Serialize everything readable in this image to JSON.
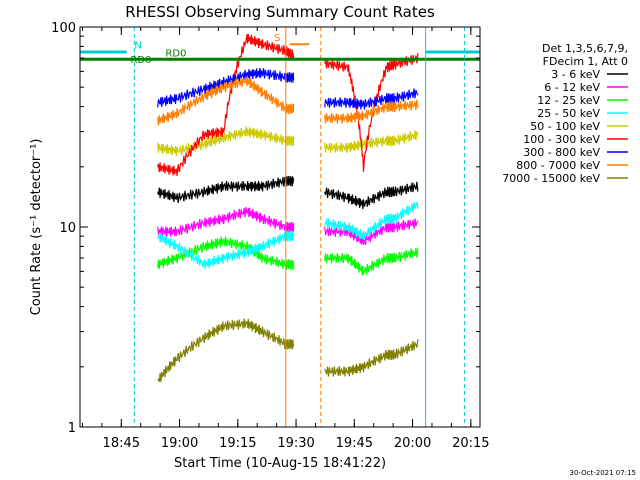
{
  "chart_data": {
    "type": "line",
    "title": "RHESSI Observing Summary Count Rates",
    "xlabel": "Start Time (10-Aug-15 18:41:22)",
    "ylabel": "Count Rate (s⁻¹ detector⁻¹)",
    "yscale": "log",
    "ylim": [
      1,
      100
    ],
    "xlim_minutes": [
      -7,
      96
    ],
    "x_tick_labels": [
      "18:45",
      "19:00",
      "19:15",
      "19:30",
      "19:45",
      "20:00",
      "20:15"
    ],
    "y_tick_labels": [
      "1",
      "10",
      "100"
    ],
    "legend_header": [
      "Det 1,3,5,6,7,9,",
      "FDecim 1, Att 0"
    ],
    "legend_position": "right",
    "timestamp": "30-Oct-2021 07:15",
    "series": [
      {
        "name": "3 - 6 keV",
        "color": "#000000",
        "x": [
          13,
          18,
          25,
          30,
          36,
          40,
          46,
          48,
          56,
          62,
          66,
          72,
          74,
          80
        ],
        "y": [
          15,
          14,
          15,
          16,
          16,
          16,
          17,
          17,
          15,
          14,
          13,
          15,
          15,
          16
        ]
      },
      {
        "name": "6 - 12 keV",
        "color": "#ff00ff",
        "x": [
          13,
          18,
          25,
          30,
          36,
          40,
          46,
          48,
          56,
          62,
          66,
          72,
          74,
          80
        ],
        "y": [
          9.5,
          9.5,
          10.5,
          11,
          12,
          11,
          10,
          10,
          9.5,
          9.5,
          8.5,
          10,
          10,
          10.5
        ]
      },
      {
        "name": "12 - 25 keV",
        "color": "#00ff00",
        "x": [
          13,
          18,
          25,
          30,
          36,
          40,
          46,
          48,
          56,
          62,
          66,
          72,
          74,
          80
        ],
        "y": [
          6.5,
          7,
          8,
          8.5,
          8,
          7,
          6.5,
          6.5,
          7,
          7,
          6,
          7,
          7,
          7.5
        ]
      },
      {
        "name": "25 - 50 keV",
        "color": "#00ffff",
        "x": [
          13,
          18,
          25,
          30,
          36,
          40,
          46,
          48,
          56,
          62,
          66,
          72,
          74,
          80
        ],
        "y": [
          9,
          8,
          6.5,
          7,
          7.5,
          8,
          9,
          9,
          10.5,
          10,
          9,
          11,
          11,
          13
        ]
      },
      {
        "name": "50 - 100 keV",
        "color": "#cccc00",
        "x": [
          13,
          18,
          25,
          30,
          36,
          40,
          46,
          48,
          56,
          62,
          66,
          72,
          74,
          80
        ],
        "y": [
          25,
          24,
          26,
          28,
          30,
          29,
          27,
          27,
          25,
          25,
          26,
          27,
          27,
          29
        ]
      },
      {
        "name": "100 - 300 keV",
        "color": "#ff0000",
        "x": [
          13,
          18,
          25,
          30,
          36,
          40,
          46,
          48,
          56,
          62,
          66,
          72,
          74,
          80
        ],
        "y": [
          20,
          19,
          29,
          30,
          88,
          82,
          76,
          72,
          66,
          63,
          20,
          63,
          65,
          70
        ]
      },
      {
        "name": "300 - 800 keV",
        "color": "#0000ff",
        "x": [
          13,
          18,
          25,
          30,
          36,
          40,
          46,
          48,
          56,
          62,
          66,
          72,
          74,
          80
        ],
        "y": [
          42,
          44,
          49,
          53,
          58,
          59,
          56,
          56,
          42,
          42,
          41,
          44,
          44,
          47
        ]
      },
      {
        "name": "800 - 7000 keV",
        "color": "#ff8000",
        "x": [
          13,
          18,
          25,
          30,
          36,
          40,
          46,
          48,
          56,
          62,
          66,
          72,
          74,
          80
        ],
        "y": [
          34,
          37,
          45,
          50,
          54,
          47,
          39,
          39,
          35,
          35,
          36,
          40,
          40,
          41
        ]
      },
      {
        "name": "7000 - 15000 keV",
        "color": "#808000",
        "x": [
          13,
          18,
          25,
          30,
          36,
          40,
          46,
          48,
          56,
          62,
          66,
          72,
          74,
          80
        ],
        "y": [
          1.7,
          2.2,
          2.8,
          3.2,
          3.3,
          3.0,
          2.6,
          2.6,
          1.9,
          1.9,
          2.0,
          2.3,
          2.3,
          2.6
        ]
      }
    ],
    "annotations": [
      {
        "text": "N",
        "color": "#00cccc"
      },
      {
        "text": "S",
        "color": "#ff8000"
      },
      {
        "text": "RD0",
        "color": "#008000"
      },
      {
        "text": "RD0",
        "color": "#008000"
      }
    ],
    "grid": false
  }
}
